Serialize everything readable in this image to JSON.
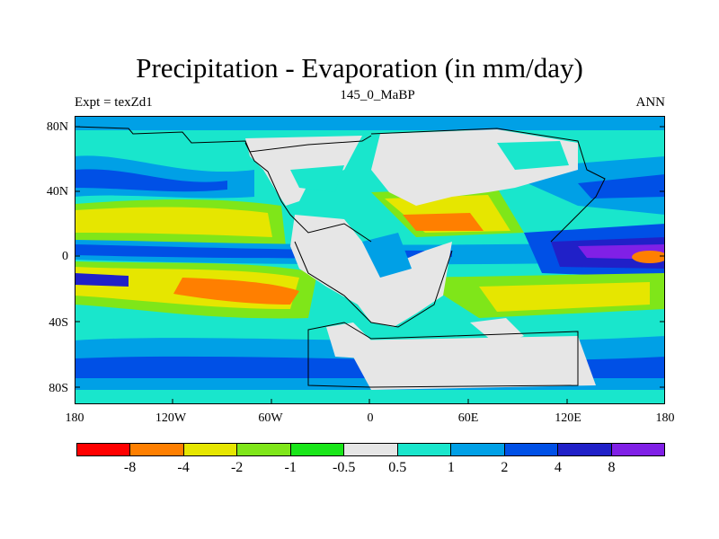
{
  "title": "Precipitation - Evaporation (in mm/day)",
  "left_label": "Expt = texZd1",
  "center_label": "145_0_MaBP",
  "right_label": "ANN",
  "lat_ticks": [
    "80N",
    "40N",
    "0",
    "40S",
    "80S"
  ],
  "lon_ticks": [
    "180",
    "120W",
    "60W",
    "0",
    "60E",
    "120E",
    "180"
  ],
  "colorbar": {
    "colors": [
      "#ff0000",
      "#ff7f00",
      "#e6e600",
      "#7fe619",
      "#19e619",
      "#e6e6e6",
      "#19e6cc",
      "#00a0e6",
      "#0050e6",
      "#2020c8",
      "#8020e6"
    ],
    "labels": [
      "-8",
      "-4",
      "-2",
      "-1",
      "-0.5",
      "0.5",
      "1",
      "2",
      "4",
      "8"
    ]
  },
  "colors": {
    "dry_strong": "#ff7f00",
    "dry": "#e6e600",
    "dry_mild": "#7fe619",
    "neutral": "#e6e6e6",
    "wet_mild": "#19e6cc",
    "wet": "#00a0e6",
    "wet_strong": "#0050e6",
    "wet_very": "#2020c8",
    "wet_extreme": "#8020e6"
  }
}
